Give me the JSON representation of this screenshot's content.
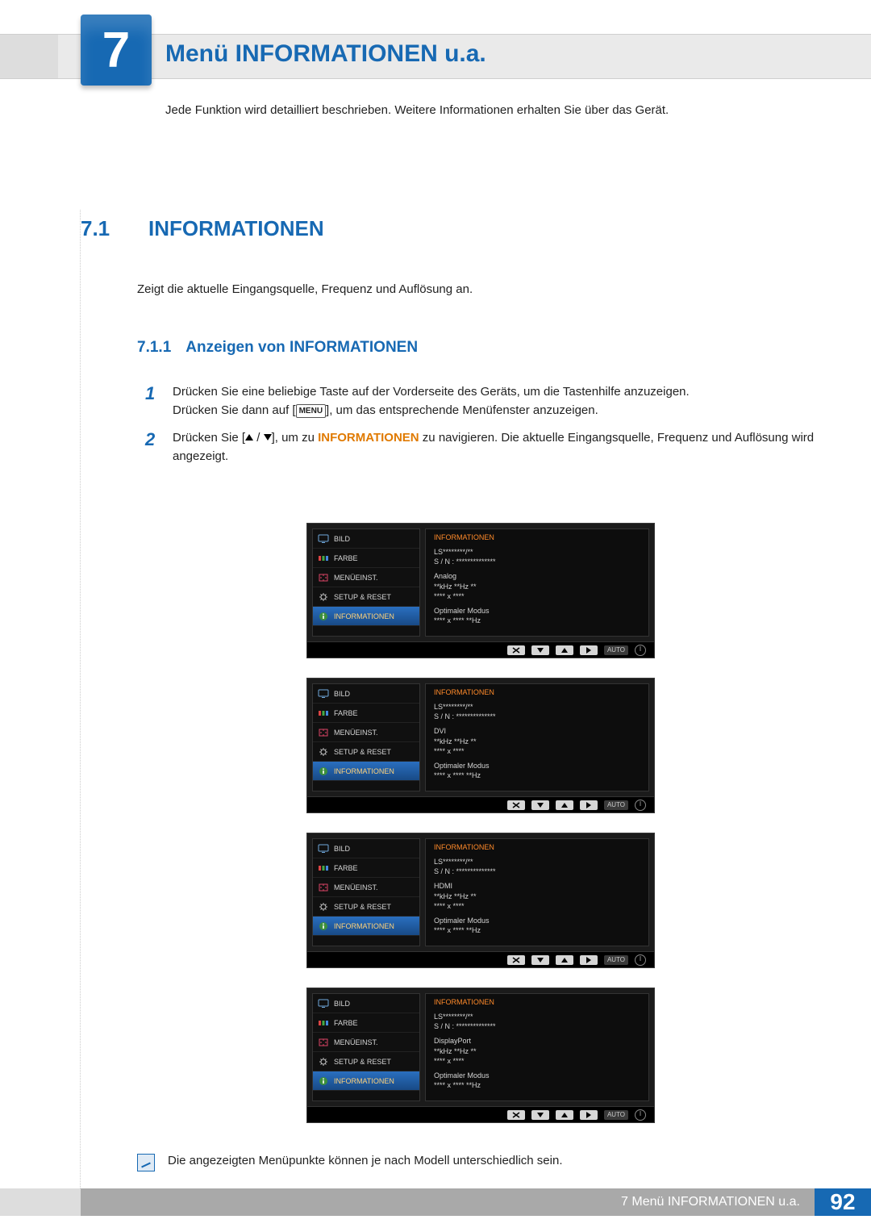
{
  "chapter": {
    "number": "7",
    "title": "Menü INFORMATIONEN u.a.",
    "subtitle": "Jede Funktion wird detailliert beschrieben. Weitere Informationen erhalten Sie über das Gerät."
  },
  "section": {
    "number": "7.1",
    "title": "INFORMATIONEN",
    "lead": "Zeigt die aktuelle Eingangsquelle, Frequenz und Auflösung an."
  },
  "subsection": {
    "number": "7.1.1",
    "title": "Anzeigen von INFORMATIONEN"
  },
  "steps": {
    "one_a": "Drücken Sie eine beliebige Taste auf der Vorderseite des Geräts, um die Tastenhilfe anzuzeigen.",
    "one_b1": "Drücken Sie dann auf [",
    "menu_key": "MENU",
    "one_b2": "], um das entsprechende Menüfenster anzuzeigen.",
    "two_a1": "Drücken Sie [",
    "two_a2": "], um zu ",
    "two_hl": "INFORMATIONEN",
    "two_a3": " zu navigieren. Die aktuelle Eingangsquelle, Frequenz und Auflösung wird angezeigt."
  },
  "osd": {
    "menu": {
      "bild": "BILD",
      "farbe": "FARBE",
      "menueinst": "MENÜEINST.",
      "setup": "SETUP & RESET",
      "info": "INFORMATIONEN"
    },
    "panel_title": "INFORMATIONEN",
    "common": {
      "model": "LS********/**",
      "sn": "S / N : **************",
      "freq": "**kHz **Hz **",
      "res": "**** x ****",
      "opt_label": "Optimaler Modus",
      "opt_val": "**** x **** **Hz"
    },
    "sources": [
      "Analog",
      "DVI",
      "HDMI",
      "DisplayPort"
    ],
    "btn_auto": "AUTO",
    "colors": {
      "bg": "#1b1b1b",
      "panel": "#0d0d0d",
      "side": "#101010",
      "border": "#333333",
      "text": "#d6d6d6",
      "accent_orange": "#ff8a2a",
      "sel_grad_top": "#2a6fbf",
      "sel_grad_bot": "#184a86",
      "sel_text": "#ffd27a",
      "btn_face": "#d6d6d6",
      "auto_bg": "#3a3a3a"
    }
  },
  "note": "Die angezeigten Menüpunkte können je nach Modell unterschiedlich sein.",
  "footer": {
    "label": "7 Menü INFORMATIONEN u.a.",
    "page": "92"
  },
  "palette": {
    "brand_blue": "#1769b3",
    "highlight_orange": "#e07a00",
    "band_grey": "#eaeaea",
    "body_text": "#222222"
  }
}
